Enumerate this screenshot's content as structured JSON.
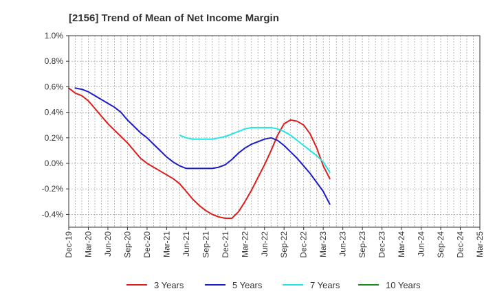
{
  "chart_data": {
    "type": "line",
    "title": "[2156]  Trend of Mean of Net Income Margin",
    "xlabel": "",
    "ylabel": "",
    "x_tick_labels": [
      "Dec-19",
      "Mar-20",
      "Jun-20",
      "Sep-20",
      "Dec-20",
      "Mar-21",
      "Jun-21",
      "Sep-21",
      "Dec-21",
      "Mar-22",
      "Jun-22",
      "Sep-22",
      "Dec-22",
      "Mar-23",
      "Jun-23",
      "Sep-23",
      "Dec-23",
      "Mar-24",
      "Jun-24",
      "Sep-24",
      "Dec-24",
      "Mar-25"
    ],
    "y_tick_labels": [
      "1.0%",
      "0.8%",
      "0.6%",
      "0.4%",
      "0.2%",
      "0.0%",
      "-0.2%",
      "-0.4%"
    ],
    "ylim": [
      -0.5,
      1.0
    ],
    "grid": true,
    "legend_position": "bottom",
    "series": [
      {
        "name": "3 Years",
        "color": "#dd1c1c",
        "points": [
          [
            0,
            0.59
          ],
          [
            1,
            0.55
          ],
          [
            2,
            0.53
          ],
          [
            3,
            0.49
          ],
          [
            4,
            0.43
          ],
          [
            5,
            0.37
          ],
          [
            6,
            0.31
          ],
          [
            7,
            0.26
          ],
          [
            8,
            0.21
          ],
          [
            9,
            0.16
          ],
          [
            10,
            0.1
          ],
          [
            11,
            0.04
          ],
          [
            12,
            0.0
          ],
          [
            13,
            -0.03
          ],
          [
            14,
            -0.06
          ],
          [
            15,
            -0.09
          ],
          [
            16,
            -0.12
          ],
          [
            17,
            -0.16
          ],
          [
            18,
            -0.22
          ],
          [
            19,
            -0.28
          ],
          [
            20,
            -0.33
          ],
          [
            21,
            -0.37
          ],
          [
            22,
            -0.4
          ],
          [
            23,
            -0.42
          ],
          [
            24,
            -0.43
          ],
          [
            25,
            -0.43
          ],
          [
            26,
            -0.38
          ],
          [
            27,
            -0.3
          ],
          [
            28,
            -0.21
          ],
          [
            29,
            -0.11
          ],
          [
            30,
            -0.01
          ],
          [
            31,
            0.1
          ],
          [
            32,
            0.22
          ],
          [
            33,
            0.31
          ],
          [
            34,
            0.34
          ],
          [
            35,
            0.33
          ],
          [
            36,
            0.3
          ],
          [
            37,
            0.23
          ],
          [
            38,
            0.12
          ],
          [
            39,
            -0.02
          ],
          [
            40,
            -0.12
          ]
        ]
      },
      {
        "name": "5 Years",
        "color": "#1b1bc8",
        "points": [
          [
            1,
            0.59
          ],
          [
            2,
            0.58
          ],
          [
            3,
            0.56
          ],
          [
            4,
            0.53
          ],
          [
            5,
            0.5
          ],
          [
            6,
            0.47
          ],
          [
            7,
            0.44
          ],
          [
            8,
            0.4
          ],
          [
            9,
            0.34
          ],
          [
            10,
            0.29
          ],
          [
            11,
            0.24
          ],
          [
            12,
            0.2
          ],
          [
            13,
            0.15
          ],
          [
            14,
            0.1
          ],
          [
            15,
            0.05
          ],
          [
            16,
            0.01
          ],
          [
            17,
            -0.02
          ],
          [
            18,
            -0.04
          ],
          [
            19,
            -0.04
          ],
          [
            20,
            -0.04
          ],
          [
            21,
            -0.04
          ],
          [
            22,
            -0.04
          ],
          [
            23,
            -0.03
          ],
          [
            24,
            -0.01
          ],
          [
            25,
            0.03
          ],
          [
            26,
            0.08
          ],
          [
            27,
            0.12
          ],
          [
            28,
            0.15
          ],
          [
            29,
            0.17
          ],
          [
            30,
            0.19
          ],
          [
            31,
            0.2
          ],
          [
            32,
            0.18
          ],
          [
            33,
            0.14
          ],
          [
            34,
            0.09
          ],
          [
            35,
            0.04
          ],
          [
            36,
            -0.02
          ],
          [
            37,
            -0.08
          ],
          [
            38,
            -0.15
          ],
          [
            39,
            -0.22
          ],
          [
            40,
            -0.32
          ]
        ]
      },
      {
        "name": "7 Years",
        "color": "#1fe6e6",
        "points": [
          [
            17,
            0.22
          ],
          [
            18,
            0.2
          ],
          [
            19,
            0.19
          ],
          [
            20,
            0.19
          ],
          [
            21,
            0.19
          ],
          [
            22,
            0.19
          ],
          [
            23,
            0.2
          ],
          [
            24,
            0.21
          ],
          [
            25,
            0.23
          ],
          [
            26,
            0.25
          ],
          [
            27,
            0.27
          ],
          [
            28,
            0.28
          ],
          [
            29,
            0.28
          ],
          [
            30,
            0.28
          ],
          [
            31,
            0.28
          ],
          [
            32,
            0.27
          ],
          [
            33,
            0.25
          ],
          [
            34,
            0.22
          ],
          [
            35,
            0.18
          ],
          [
            36,
            0.14
          ],
          [
            37,
            0.1
          ],
          [
            38,
            0.06
          ],
          [
            39,
            0.01
          ],
          [
            40,
            -0.07
          ]
        ]
      },
      {
        "name": "10 Years",
        "color": "#1a8a1a",
        "points": []
      }
    ]
  }
}
